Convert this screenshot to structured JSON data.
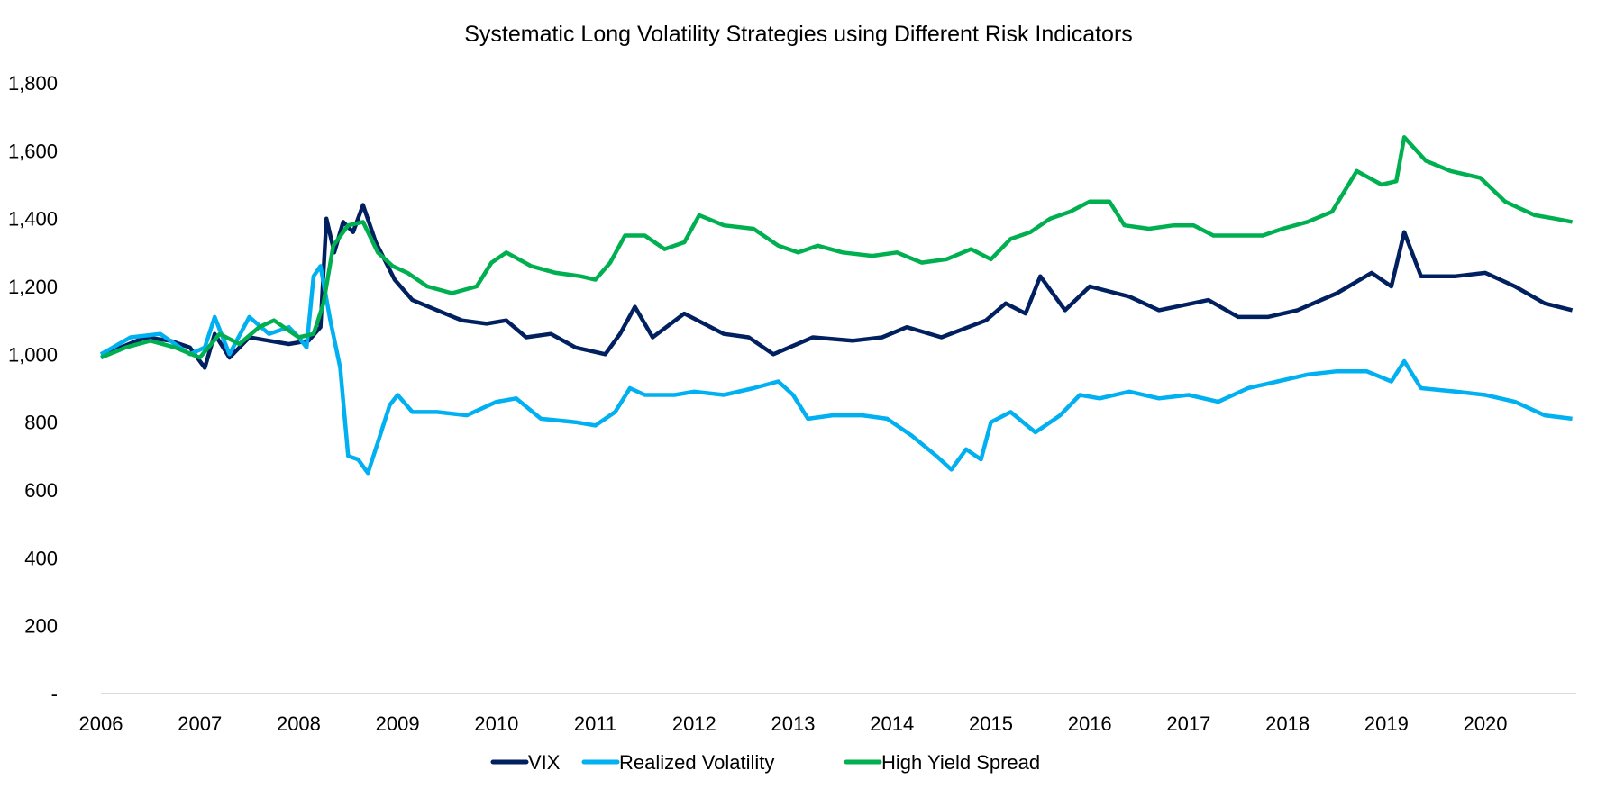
{
  "chart_data": {
    "type": "line",
    "title": "Systematic Long Volatility Strategies using Different Risk Indicators",
    "xlabel": "",
    "ylabel": "",
    "xlim": [
      2006,
      2020.92
    ],
    "ylim": [
      0,
      1800
    ],
    "grid": false,
    "legend_position": "bottom",
    "x_ticks": [
      2006,
      2007,
      2008,
      2009,
      2010,
      2011,
      2012,
      2013,
      2014,
      2015,
      2016,
      2017,
      2018,
      2019,
      2020
    ],
    "x_tick_labels": [
      "2006",
      "2007",
      "2008",
      "2009",
      "2010",
      "2011",
      "2012",
      "2013",
      "2014",
      "2015",
      "2016",
      "2017",
      "2018",
      "2019",
      "2020"
    ],
    "y_ticks": [
      0,
      200,
      400,
      600,
      800,
      1000,
      1200,
      1400,
      1600,
      1800
    ],
    "y_tick_labels": [
      "-",
      "200",
      "400",
      "600",
      "800",
      "1,000",
      "1,200",
      "1,400",
      "1,600",
      "1,800"
    ],
    "series": [
      {
        "name": "VIX",
        "color": "#002060",
        "points": [
          [
            2006.0,
            1000
          ],
          [
            2006.2,
            1020
          ],
          [
            2006.45,
            1050
          ],
          [
            2006.7,
            1040
          ],
          [
            2006.9,
            1020
          ],
          [
            2007.05,
            960
          ],
          [
            2007.15,
            1060
          ],
          [
            2007.3,
            990
          ],
          [
            2007.5,
            1050
          ],
          [
            2007.7,
            1040
          ],
          [
            2007.9,
            1030
          ],
          [
            2008.1,
            1040
          ],
          [
            2008.22,
            1080
          ],
          [
            2008.28,
            1400
          ],
          [
            2008.36,
            1300
          ],
          [
            2008.45,
            1390
          ],
          [
            2008.55,
            1360
          ],
          [
            2008.65,
            1440
          ],
          [
            2008.78,
            1330
          ],
          [
            2008.97,
            1220
          ],
          [
            2009.15,
            1160
          ],
          [
            2009.4,
            1130
          ],
          [
            2009.65,
            1100
          ],
          [
            2009.9,
            1090
          ],
          [
            2010.1,
            1100
          ],
          [
            2010.3,
            1050
          ],
          [
            2010.55,
            1060
          ],
          [
            2010.8,
            1020
          ],
          [
            2011.1,
            1000
          ],
          [
            2011.25,
            1060
          ],
          [
            2011.4,
            1140
          ],
          [
            2011.58,
            1050
          ],
          [
            2011.9,
            1120
          ],
          [
            2012.3,
            1060
          ],
          [
            2012.55,
            1050
          ],
          [
            2012.8,
            1000
          ],
          [
            2013.2,
            1050
          ],
          [
            2013.6,
            1040
          ],
          [
            2013.9,
            1050
          ],
          [
            2014.15,
            1080
          ],
          [
            2014.5,
            1050
          ],
          [
            2014.95,
            1100
          ],
          [
            2015.15,
            1150
          ],
          [
            2015.35,
            1120
          ],
          [
            2015.5,
            1230
          ],
          [
            2015.75,
            1130
          ],
          [
            2016.0,
            1200
          ],
          [
            2016.4,
            1170
          ],
          [
            2016.7,
            1130
          ],
          [
            2017.2,
            1160
          ],
          [
            2017.5,
            1110
          ],
          [
            2017.8,
            1110
          ],
          [
            2018.1,
            1130
          ],
          [
            2018.5,
            1180
          ],
          [
            2018.85,
            1240
          ],
          [
            2019.05,
            1200
          ],
          [
            2019.18,
            1360
          ],
          [
            2019.35,
            1230
          ],
          [
            2019.7,
            1230
          ],
          [
            2020.0,
            1240
          ],
          [
            2020.3,
            1200
          ],
          [
            2020.6,
            1150
          ],
          [
            2020.88,
            1130
          ]
        ]
      },
      {
        "name": "Realized Volatility",
        "color": "#00B0F0",
        "points": [
          [
            2006.0,
            1000
          ],
          [
            2006.3,
            1050
          ],
          [
            2006.6,
            1060
          ],
          [
            2006.9,
            1000
          ],
          [
            2007.05,
            1020
          ],
          [
            2007.15,
            1110
          ],
          [
            2007.3,
            1000
          ],
          [
            2007.5,
            1110
          ],
          [
            2007.7,
            1060
          ],
          [
            2007.9,
            1080
          ],
          [
            2008.0,
            1050
          ],
          [
            2008.08,
            1020
          ],
          [
            2008.15,
            1230
          ],
          [
            2008.22,
            1260
          ],
          [
            2008.32,
            1100
          ],
          [
            2008.42,
            960
          ],
          [
            2008.5,
            700
          ],
          [
            2008.6,
            690
          ],
          [
            2008.7,
            650
          ],
          [
            2008.8,
            740
          ],
          [
            2008.92,
            850
          ],
          [
            2009.0,
            880
          ],
          [
            2009.15,
            830
          ],
          [
            2009.4,
            830
          ],
          [
            2009.7,
            820
          ],
          [
            2010.0,
            860
          ],
          [
            2010.2,
            870
          ],
          [
            2010.45,
            810
          ],
          [
            2010.8,
            800
          ],
          [
            2011.0,
            790
          ],
          [
            2011.2,
            830
          ],
          [
            2011.35,
            900
          ],
          [
            2011.5,
            880
          ],
          [
            2011.8,
            880
          ],
          [
            2012.0,
            890
          ],
          [
            2012.3,
            880
          ],
          [
            2012.6,
            900
          ],
          [
            2012.85,
            920
          ],
          [
            2013.0,
            880
          ],
          [
            2013.15,
            810
          ],
          [
            2013.4,
            820
          ],
          [
            2013.7,
            820
          ],
          [
            2013.95,
            810
          ],
          [
            2014.2,
            760
          ],
          [
            2014.45,
            700
          ],
          [
            2014.6,
            660
          ],
          [
            2014.75,
            720
          ],
          [
            2014.9,
            690
          ],
          [
            2015.0,
            800
          ],
          [
            2015.2,
            830
          ],
          [
            2015.45,
            770
          ],
          [
            2015.7,
            820
          ],
          [
            2015.9,
            880
          ],
          [
            2016.1,
            870
          ],
          [
            2016.4,
            890
          ],
          [
            2016.7,
            870
          ],
          [
            2017.0,
            880
          ],
          [
            2017.3,
            860
          ],
          [
            2017.6,
            900
          ],
          [
            2017.9,
            920
          ],
          [
            2018.2,
            940
          ],
          [
            2018.5,
            950
          ],
          [
            2018.8,
            950
          ],
          [
            2019.05,
            920
          ],
          [
            2019.18,
            980
          ],
          [
            2019.35,
            900
          ],
          [
            2019.7,
            890
          ],
          [
            2020.0,
            880
          ],
          [
            2020.3,
            860
          ],
          [
            2020.6,
            820
          ],
          [
            2020.88,
            810
          ]
        ]
      },
      {
        "name": "High Yield Spread",
        "color": "#00B050",
        "points": [
          [
            2006.0,
            990
          ],
          [
            2006.25,
            1020
          ],
          [
            2006.5,
            1040
          ],
          [
            2006.75,
            1020
          ],
          [
            2007.0,
            990
          ],
          [
            2007.2,
            1060
          ],
          [
            2007.4,
            1030
          ],
          [
            2007.6,
            1080
          ],
          [
            2007.75,
            1100
          ],
          [
            2008.0,
            1050
          ],
          [
            2008.15,
            1060
          ],
          [
            2008.25,
            1150
          ],
          [
            2008.35,
            1320
          ],
          [
            2008.5,
            1380
          ],
          [
            2008.65,
            1390
          ],
          [
            2008.8,
            1300
          ],
          [
            2008.95,
            1260
          ],
          [
            2009.1,
            1240
          ],
          [
            2009.3,
            1200
          ],
          [
            2009.55,
            1180
          ],
          [
            2009.8,
            1200
          ],
          [
            2009.95,
            1270
          ],
          [
            2010.1,
            1300
          ],
          [
            2010.35,
            1260
          ],
          [
            2010.6,
            1240
          ],
          [
            2010.85,
            1230
          ],
          [
            2011.0,
            1220
          ],
          [
            2011.15,
            1270
          ],
          [
            2011.3,
            1350
          ],
          [
            2011.5,
            1350
          ],
          [
            2011.7,
            1310
          ],
          [
            2011.9,
            1330
          ],
          [
            2012.05,
            1410
          ],
          [
            2012.3,
            1380
          ],
          [
            2012.6,
            1370
          ],
          [
            2012.85,
            1320
          ],
          [
            2013.05,
            1300
          ],
          [
            2013.25,
            1320
          ],
          [
            2013.5,
            1300
          ],
          [
            2013.8,
            1290
          ],
          [
            2014.05,
            1300
          ],
          [
            2014.3,
            1270
          ],
          [
            2014.55,
            1280
          ],
          [
            2014.8,
            1310
          ],
          [
            2015.0,
            1280
          ],
          [
            2015.2,
            1340
          ],
          [
            2015.4,
            1360
          ],
          [
            2015.6,
            1400
          ],
          [
            2015.8,
            1420
          ],
          [
            2016.0,
            1450
          ],
          [
            2016.2,
            1450
          ],
          [
            2016.35,
            1380
          ],
          [
            2016.6,
            1370
          ],
          [
            2016.85,
            1380
          ],
          [
            2017.05,
            1380
          ],
          [
            2017.25,
            1350
          ],
          [
            2017.5,
            1350
          ],
          [
            2017.75,
            1350
          ],
          [
            2017.95,
            1370
          ],
          [
            2018.2,
            1390
          ],
          [
            2018.45,
            1420
          ],
          [
            2018.7,
            1540
          ],
          [
            2018.95,
            1500
          ],
          [
            2019.1,
            1510
          ],
          [
            2019.18,
            1640
          ],
          [
            2019.4,
            1570
          ],
          [
            2019.65,
            1540
          ],
          [
            2019.95,
            1520
          ],
          [
            2020.2,
            1450
          ],
          [
            2020.5,
            1410
          ],
          [
            2020.7,
            1400
          ],
          [
            2020.88,
            1390
          ]
        ]
      }
    ]
  }
}
